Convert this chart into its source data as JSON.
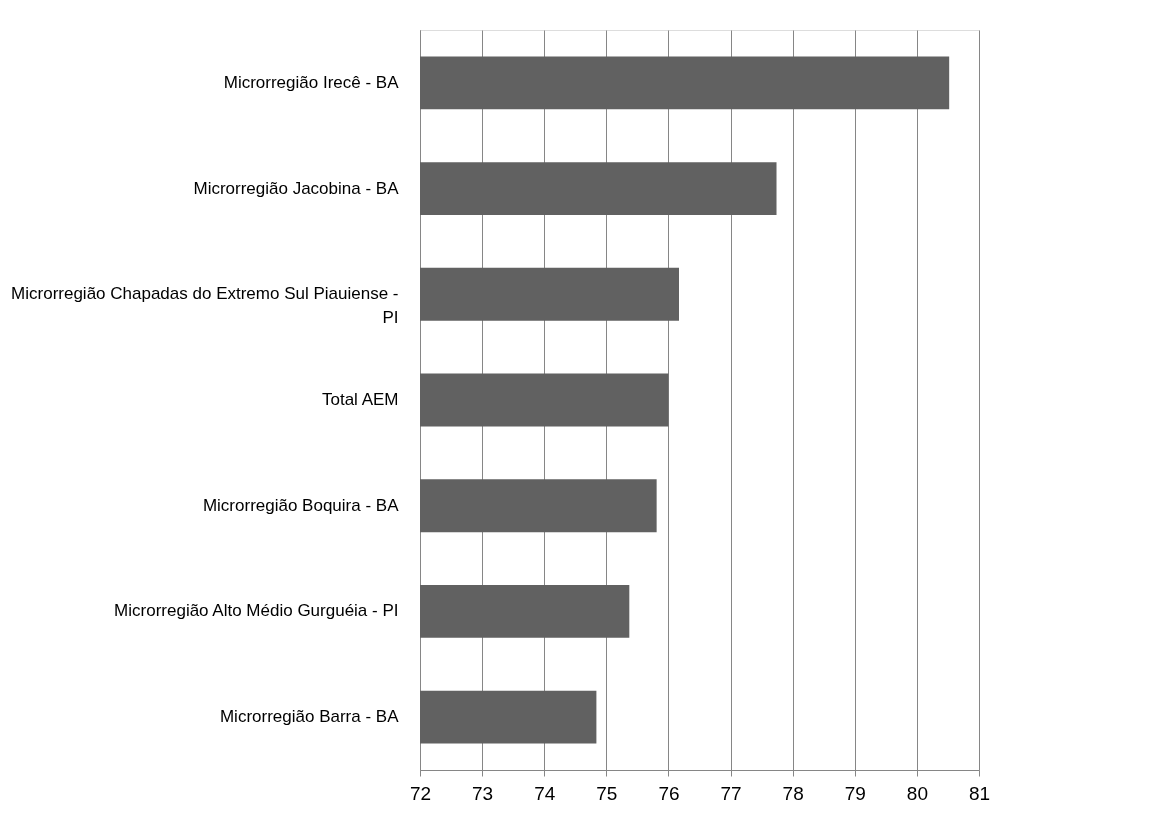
{
  "chart_data": {
    "type": "bar",
    "orientation": "horizontal",
    "categories": [
      "Microrregião Irecê - BA",
      "Microrregião Jacobina - BA",
      "Microrregião Chapadas do Extremo Sul Piauiense - PI",
      "Total AEM",
      "Microrregião Boquira - BA",
      "Microrregião Alto Médio Gurguéia - PI",
      "Microrregião Barra - BA"
    ],
    "values": [
      80.52,
      77.74,
      76.17,
      76.0,
      75.81,
      75.37,
      74.84
    ],
    "color": "#616161",
    "xlim": [
      72,
      81
    ],
    "xticks": [
      72,
      73,
      74,
      75,
      76,
      77,
      78,
      79,
      80,
      81
    ],
    "grid": "x"
  }
}
